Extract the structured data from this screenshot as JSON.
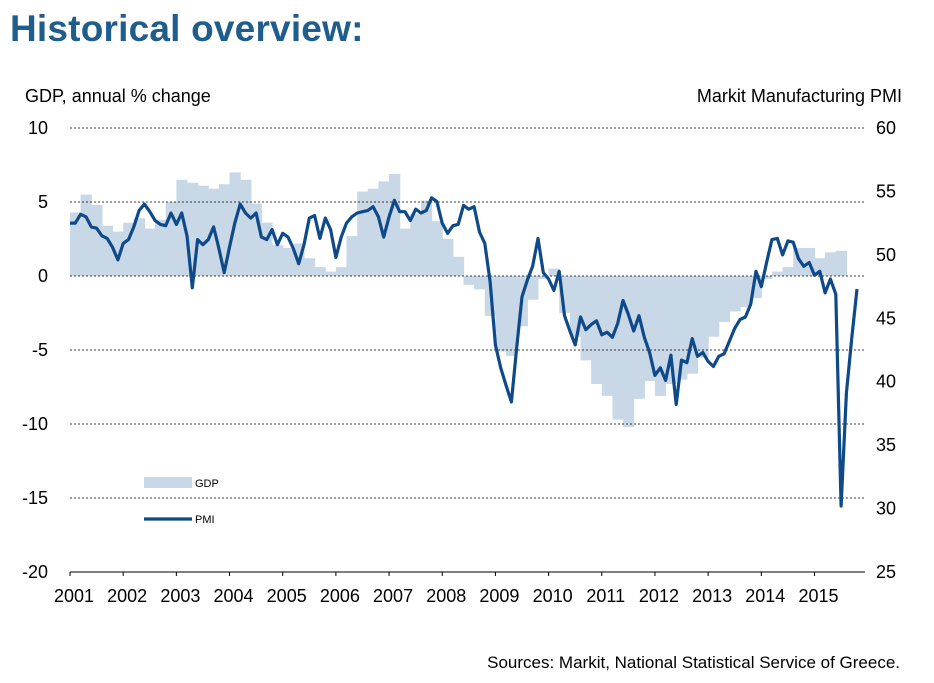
{
  "title": "Historical overview:",
  "source": "Sources: Markit, National Statistical Service of Greece.",
  "colors": {
    "title": "#1f5d8c",
    "gdp_fill": "#c9d8e6",
    "pmi_line": "#0e4a8a",
    "grid": "#000000"
  },
  "chart_data": {
    "type": "area",
    "ylabel": "GDP, annual % change",
    "y2label": "Markit Manufacturing PMI",
    "ylim": [
      -20,
      10
    ],
    "y2lim": [
      25,
      60
    ],
    "yticks": [
      "10",
      "5",
      "0",
      "-5",
      "-10",
      "-15",
      "-20"
    ],
    "y2ticks": [
      "60",
      "55",
      "50",
      "45",
      "40",
      "35",
      "30",
      "25"
    ],
    "xticks": [
      "2001",
      "2002",
      "2003",
      "2004",
      "2005",
      "2006",
      "2007",
      "2008",
      "2009",
      "2010",
      "2011",
      "2012",
      "2013",
      "2014",
      "2015"
    ],
    "xlim": [
      2001.0,
      2015.95
    ],
    "grid": true,
    "legend": "bottom-left",
    "series": [
      {
        "name": "GDP",
        "type": "area",
        "axis": "left",
        "x": [
          2001.0,
          2001.2,
          2001.4,
          2001.6,
          2001.8,
          2002.0,
          2002.2,
          2002.4,
          2002.6,
          2002.8,
          2003.0,
          2003.2,
          2003.4,
          2003.6,
          2003.8,
          2004.0,
          2004.2,
          2004.4,
          2004.6,
          2004.8,
          2005.0,
          2005.2,
          2005.4,
          2005.6,
          2005.8,
          2006.0,
          2006.2,
          2006.4,
          2006.6,
          2006.8,
          2007.0,
          2007.2,
          2007.4,
          2007.6,
          2007.8,
          2008.0,
          2008.2,
          2008.4,
          2008.6,
          2008.8,
          2009.0,
          2009.2,
          2009.4,
          2009.6,
          2009.8,
          2010.0,
          2010.2,
          2010.4,
          2010.6,
          2010.8,
          2011.0,
          2011.2,
          2011.4,
          2011.6,
          2011.8,
          2012.0,
          2012.2,
          2012.4,
          2012.6,
          2012.8,
          2013.0,
          2013.2,
          2013.4,
          2013.6,
          2013.8,
          2014.0,
          2014.2,
          2014.4,
          2014.6,
          2014.8,
          2015.0,
          2015.2,
          2015.4
        ],
        "values": [
          4.3,
          5.5,
          4.8,
          3.4,
          3.0,
          3.6,
          3.9,
          3.2,
          3.8,
          5.0,
          6.5,
          6.3,
          6.1,
          5.9,
          6.2,
          7.0,
          6.5,
          4.9,
          3.6,
          2.1,
          1.9,
          2.2,
          1.2,
          0.6,
          0.3,
          0.6,
          2.7,
          5.7,
          5.9,
          6.4,
          6.9,
          3.2,
          4.2,
          5.1,
          3.7,
          2.5,
          1.3,
          -0.6,
          -0.9,
          -2.7,
          -5.1,
          -5.4,
          -3.4,
          -1.6,
          -0.2,
          0.5,
          -2.5,
          -4.1,
          -5.7,
          -7.3,
          -8.1,
          -9.7,
          -10.2,
          -8.3,
          -7.1,
          -8.1,
          -7.3,
          -7.0,
          -6.6,
          -5.5,
          -4.1,
          -3.1,
          -2.4,
          -2.1,
          -1.5,
          -0.2,
          0.3,
          0.6,
          1.9,
          1.9,
          1.2,
          1.6,
          1.7
        ]
      },
      {
        "name": "PMI",
        "type": "line",
        "axis": "right",
        "x": [
          2001.0,
          2001.1,
          2001.2,
          2001.3,
          2001.4,
          2001.5,
          2001.6,
          2001.7,
          2001.8,
          2001.9,
          2002.0,
          2002.1,
          2002.2,
          2002.3,
          2002.4,
          2002.5,
          2002.6,
          2002.7,
          2002.8,
          2002.9,
          2003.0,
          2003.1,
          2003.2,
          2003.3,
          2003.4,
          2003.5,
          2003.6,
          2003.7,
          2003.8,
          2003.9,
          2004.0,
          2004.1,
          2004.2,
          2004.3,
          2004.4,
          2004.5,
          2004.6,
          2004.7,
          2004.8,
          2004.9,
          2005.0,
          2005.1,
          2005.2,
          2005.3,
          2005.4,
          2005.5,
          2005.6,
          2005.7,
          2005.8,
          2005.9,
          2006.0,
          2006.1,
          2006.2,
          2006.3,
          2006.4,
          2006.5,
          2006.6,
          2006.7,
          2006.8,
          2006.9,
          2007.0,
          2007.1,
          2007.2,
          2007.3,
          2007.4,
          2007.5,
          2007.6,
          2007.7,
          2007.8,
          2007.9,
          2008.0,
          2008.1,
          2008.2,
          2008.3,
          2008.4,
          2008.5,
          2008.6,
          2008.7,
          2008.8,
          2008.9,
          2009.0,
          2009.1,
          2009.2,
          2009.3,
          2009.4,
          2009.5,
          2009.6,
          2009.7,
          2009.8,
          2009.9,
          2010.0,
          2010.1,
          2010.2,
          2010.3,
          2010.4,
          2010.5,
          2010.6,
          2010.7,
          2010.8,
          2010.9,
          2011.0,
          2011.1,
          2011.2,
          2011.3,
          2011.4,
          2011.5,
          2011.6,
          2011.7,
          2011.8,
          2011.9,
          2012.0,
          2012.1,
          2012.2,
          2012.3,
          2012.4,
          2012.5,
          2012.6,
          2012.7,
          2012.8,
          2012.9,
          2013.0,
          2013.1,
          2013.2,
          2013.3,
          2013.4,
          2013.5,
          2013.6,
          2013.7,
          2013.8,
          2013.9,
          2014.0,
          2014.1,
          2014.2,
          2014.3,
          2014.4,
          2014.5,
          2014.6,
          2014.7,
          2014.8,
          2014.9,
          2015.0,
          2015.1,
          2015.2,
          2015.3,
          2015.4,
          2015.5,
          2015.6,
          2015.7,
          2015.8
        ],
        "values": [
          52.5,
          52.5,
          53.2,
          53.0,
          52.2,
          52.1,
          51.5,
          51.3,
          50.6,
          49.6,
          50.9,
          51.2,
          52.2,
          53.5,
          54.0,
          53.4,
          52.7,
          52.4,
          52.3,
          53.3,
          52.4,
          53.3,
          51.5,
          47.4,
          51.2,
          50.8,
          51.2,
          52.2,
          50.5,
          48.6,
          50.6,
          52.5,
          54.0,
          53.3,
          52.9,
          53.3,
          51.4,
          51.2,
          52.0,
          50.8,
          51.7,
          51.4,
          50.5,
          49.3,
          50.8,
          52.9,
          53.1,
          51.3,
          52.9,
          52.0,
          49.8,
          51.4,
          52.5,
          53.0,
          53.3,
          53.4,
          53.5,
          53.8,
          53.0,
          51.4,
          53.0,
          54.3,
          53.4,
          53.4,
          52.7,
          53.6,
          53.3,
          53.5,
          54.5,
          54.2,
          52.5,
          51.7,
          52.3,
          52.4,
          53.9,
          53.6,
          53.8,
          51.8,
          50.9,
          47.9,
          42.9,
          41.1,
          39.7,
          38.4,
          42.7,
          46.7,
          48.0,
          49.1,
          51.3,
          48.6,
          48.1,
          47.2,
          48.7,
          45.2,
          44.0,
          42.9,
          45.1,
          44.1,
          44.5,
          44.8,
          43.7,
          43.9,
          43.5,
          44.6,
          46.4,
          45.3,
          44.0,
          45.2,
          43.5,
          42.3,
          40.5,
          41.1,
          40.1,
          42.1,
          38.2,
          41.7,
          41.5,
          43.4,
          42.0,
          42.3,
          41.6,
          41.2,
          42.0,
          42.2,
          43.2,
          44.2,
          44.9,
          45.1,
          46.1,
          48.7,
          47.5,
          49.4,
          51.2,
          51.3,
          50.0,
          51.1,
          51.0,
          49.7,
          49.1,
          49.4,
          48.4,
          48.7,
          47.0,
          48.1,
          46.9,
          30.2,
          39.1,
          43.4,
          47.3
        ]
      }
    ]
  }
}
